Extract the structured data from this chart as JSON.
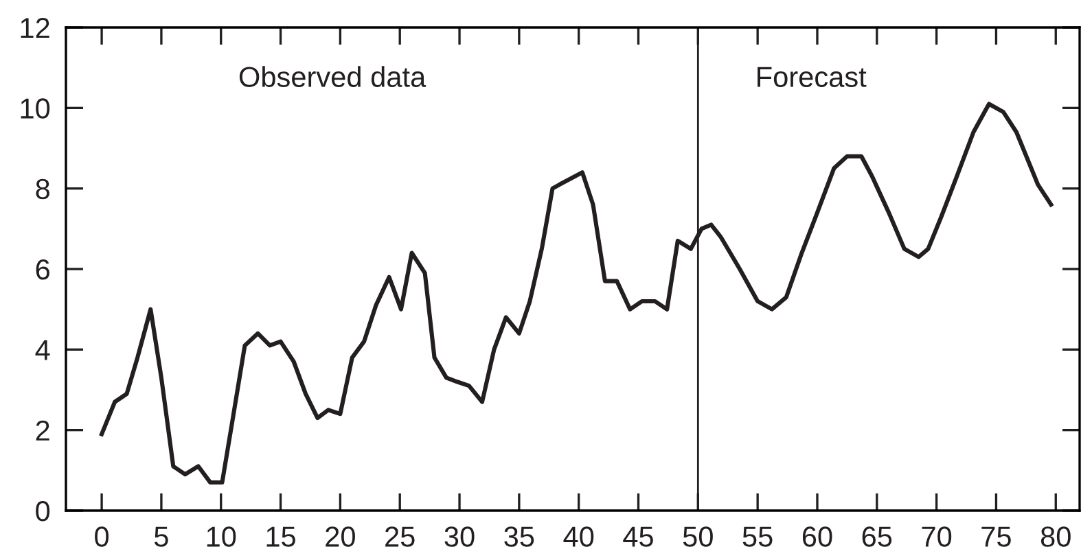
{
  "chart_data": {
    "type": "line",
    "x": [
      0,
      1.1,
      2.1,
      3,
      4.1,
      5,
      6,
      7,
      8.1,
      9.1,
      10.1,
      11,
      12,
      13.1,
      14.1,
      15,
      16.1,
      17.1,
      18.1,
      19,
      20,
      21,
      22,
      23,
      24.1,
      25.1,
      26,
      27.1,
      27.9,
      28.9,
      29.8,
      30.8,
      31.9,
      32.9,
      33.9,
      35,
      35.9,
      36.9,
      37.8,
      38.4,
      40.3,
      41.2,
      42.2,
      43.2,
      44.3,
      45.3,
      46.4,
      47.4,
      48.3,
      49.4,
      50.3,
      51.1,
      51.9,
      53.5,
      55,
      56.2,
      57.4,
      58.7,
      60,
      61.4,
      62.5,
      63.7,
      64.6,
      66,
      67.3,
      68.5,
      69.3,
      70.4,
      71.7,
      73.1,
      74.4,
      75.6,
      76.7,
      78.5,
      79.6
    ],
    "series": [
      {
        "color": "#231f20",
        "values": [
          1.9,
          2.7,
          2.9,
          3.8,
          5,
          3.3,
          1.1,
          0.9,
          1.1,
          0.7,
          0.7,
          2.3,
          4.1,
          4.4,
          4.1,
          4.2,
          3.7,
          2.9,
          2.3,
          2.5,
          2.4,
          3.8,
          4.2,
          5.1,
          5.8,
          5,
          6.4,
          5.9,
          3.8,
          3.3,
          3.2,
          3.1,
          2.7,
          4,
          4.8,
          4.4,
          5.2,
          6.5,
          8,
          8.1,
          8.4,
          7.6,
          5.7,
          5.7,
          5,
          5.2,
          5.2,
          5,
          6.7,
          6.5,
          7,
          7.1,
          6.8,
          6,
          5.2,
          5,
          5.3,
          6.4,
          7.4,
          8.5,
          8.8,
          8.8,
          8.3,
          7.4,
          6.5,
          6.3,
          6.5,
          7.3,
          8.3,
          9.4,
          10.1,
          9.9,
          9.4,
          8.1,
          7.6
        ]
      }
    ],
    "xlim": [
      -3,
      82
    ],
    "xticks": [
      0,
      5,
      10,
      15,
      20,
      25,
      30,
      35,
      40,
      45,
      50,
      55,
      60,
      65,
      70,
      75,
      80
    ],
    "ylim": [
      0,
      12
    ],
    "yticks": [
      0,
      2,
      4,
      6,
      8,
      10,
      12
    ],
    "ref_lines": [
      {
        "axis": "x",
        "value": 50,
        "color": "#231f20"
      }
    ],
    "annotations": [
      "Observed data",
      "Forecast"
    ],
    "grid": false,
    "legend": false,
    "marker": "none",
    "line_style": "solid"
  }
}
